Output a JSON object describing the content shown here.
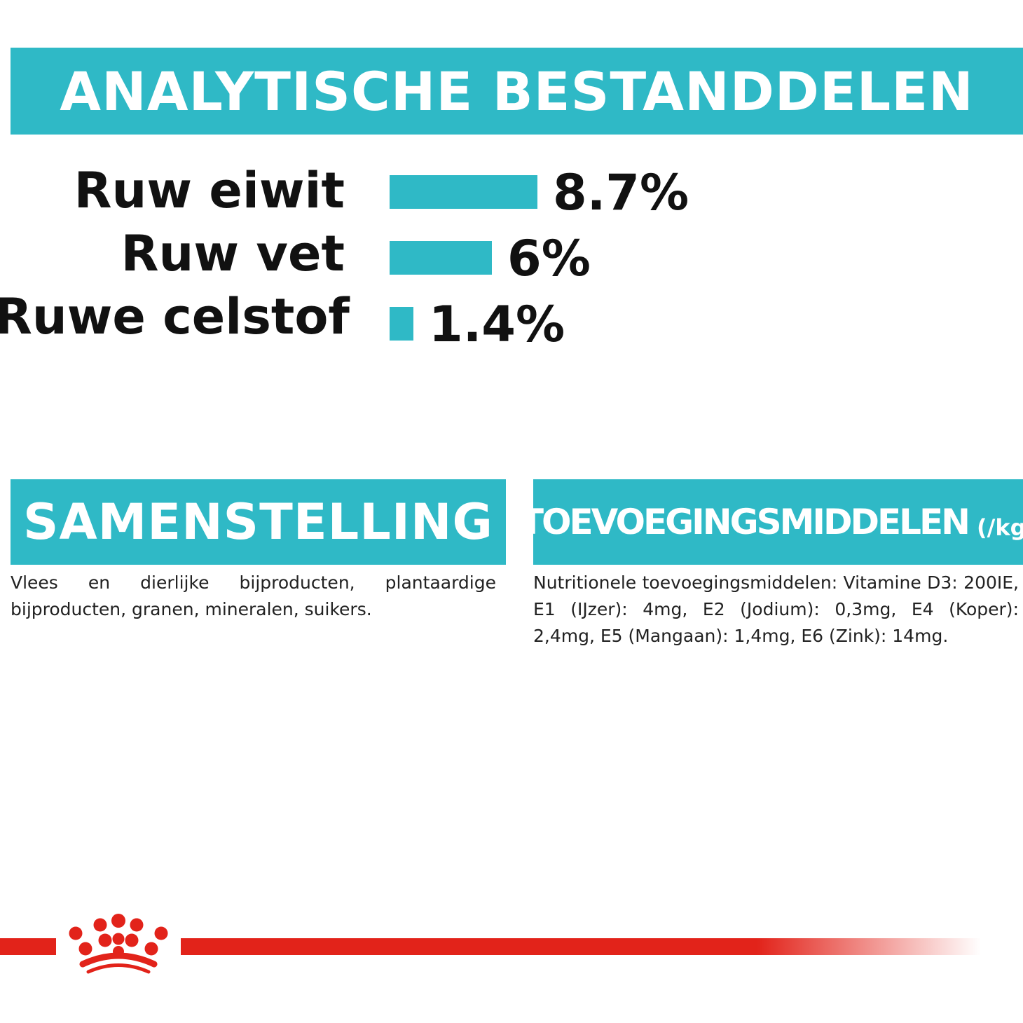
{
  "colors": {
    "accent": "#2fb9c6",
    "text": "#111111",
    "brand_red": "#e2231a"
  },
  "banners": {
    "analytic": "ANALYTISCHE BESTANDDELEN",
    "composition": "SAMENSTELLING",
    "additives": "TOEVOEGINGSMIDDELEN",
    "additives_unit": "(/kg)"
  },
  "chart_data": {
    "type": "bar",
    "orientation": "horizontal",
    "title": "ANALYTISCHE BESTANDDELEN",
    "categories": [
      "Ruw eiwit",
      "Ruw vet",
      "Ruwe celstof"
    ],
    "values": [
      8.7,
      6,
      1.4
    ],
    "value_labels": [
      "8.7%",
      "6%",
      "1.4%"
    ],
    "unit": "%",
    "xlim": [
      0,
      8.7
    ],
    "grid": false,
    "legend": "none"
  },
  "composition": {
    "text": "Vlees en dierlijke bijproducten, plantaardige bijproducten, granen, mineralen, suikers."
  },
  "additives": {
    "text": "Nutritionele toevoegingsmiddelen: Vitamine D3: 200IE, E1 (IJzer): 4mg, E2 (Jodium): 0,3mg, E4 (Koper): 2,4mg, E5 (Mangaan): 1,4mg, E6 (Zink): 14mg."
  },
  "logo": {
    "icon": "royal-canin-crown-icon"
  }
}
